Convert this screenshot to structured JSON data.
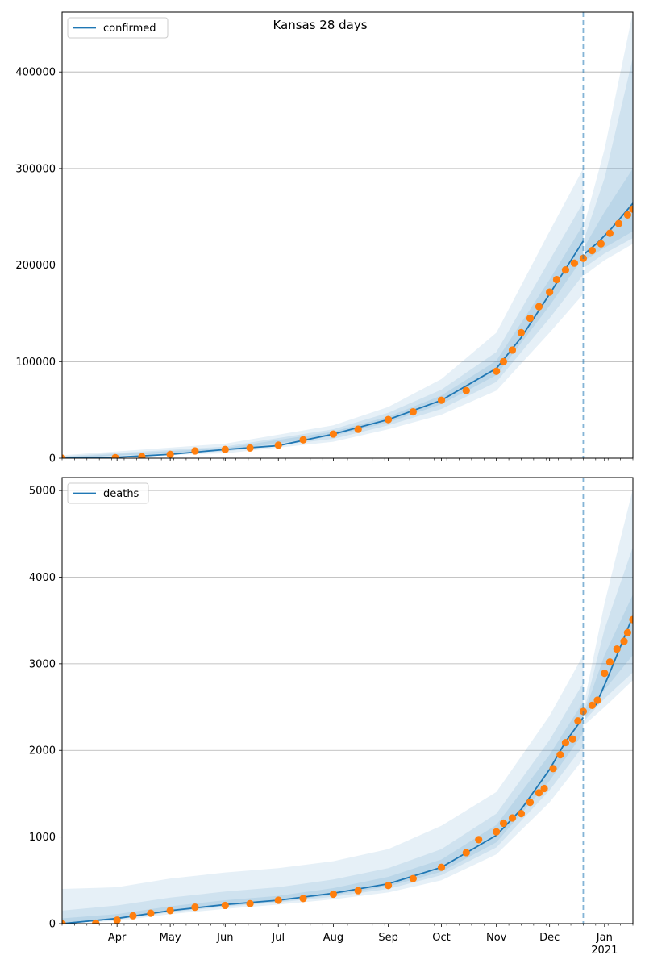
{
  "figure": {
    "title": "Kansas 28 days"
  },
  "colors": {
    "model_line": "#1f77b4",
    "band": "#1f77b4",
    "observed": "#ff7f0e",
    "forecast_line": "#1f77b4",
    "grid": "#b0b0b0",
    "axis": "#000000"
  },
  "chart_data": [
    {
      "type": "line",
      "name": "confirmed-panel",
      "x_axis": {
        "type": "date",
        "range": [
          "2020-03-01",
          "2021-01-17"
        ],
        "tick_labels": [
          {
            "date": "2020-04-01",
            "label": "Apr"
          },
          {
            "date": "2020-05-01",
            "label": "May"
          },
          {
            "date": "2020-06-01",
            "label": "Jun"
          },
          {
            "date": "2020-07-01",
            "label": "Jul"
          },
          {
            "date": "2020-08-01",
            "label": "Aug"
          },
          {
            "date": "2020-09-01",
            "label": "Sep"
          },
          {
            "date": "2020-10-01",
            "label": "Oct"
          },
          {
            "date": "2020-11-01",
            "label": "Nov"
          },
          {
            "date": "2020-12-01",
            "label": "Dec"
          },
          {
            "date": "2021-01-01",
            "label": "Jan"
          }
        ],
        "year_label": {
          "date": "2021-01-01",
          "label": "2021"
        },
        "show_tick_labels": false
      },
      "y_axis": {
        "range": [
          0,
          462000
        ],
        "ticks": [
          0,
          100000,
          200000,
          300000,
          400000
        ],
        "tick_labels": [
          "0",
          "100000",
          "200000",
          "300000",
          "400000"
        ]
      },
      "grid": "horizontal",
      "legend": {
        "position": "top-left",
        "entries": [
          "confirmed"
        ]
      },
      "forecast_start": "2020-12-20",
      "series": [
        {
          "name": "confirmed",
          "role": "model",
          "points": [
            [
              "2020-03-01",
              0
            ],
            [
              "2020-04-01",
              1000
            ],
            [
              "2020-05-01",
              4000
            ],
            [
              "2020-06-01",
              9000
            ],
            [
              "2020-07-01",
              13000
            ],
            [
              "2020-08-01",
              25000
            ],
            [
              "2020-09-01",
              40000
            ],
            [
              "2020-10-01",
              60000
            ],
            [
              "2020-11-01",
              93000
            ],
            [
              "2020-11-15",
              125000
            ],
            [
              "2020-12-01",
              170000
            ],
            [
              "2020-12-20",
              225000
            ],
            [
              "2020-12-21",
              212000
            ],
            [
              "2020-12-28",
              223000
            ],
            [
              "2021-01-05",
              238000
            ],
            [
              "2021-01-17",
              264000
            ]
          ]
        }
      ],
      "bands": [
        {
          "level": "outer",
          "points": [
            [
              "2020-03-01",
              0,
              3000
            ],
            [
              "2020-06-01",
              5000,
              15000
            ],
            [
              "2020-08-01",
              17000,
              34000
            ],
            [
              "2020-09-01",
              30000,
              53000
            ],
            [
              "2020-10-01",
              45000,
              82000
            ],
            [
              "2020-11-01",
              70000,
              130000
            ],
            [
              "2020-12-01",
              130000,
              235000
            ],
            [
              "2020-12-20",
              170000,
              300000
            ],
            [
              "2020-12-21",
              190000,
              245000
            ],
            [
              "2021-01-01",
              205000,
              320000
            ],
            [
              "2021-01-17",
              222000,
              462000
            ]
          ]
        },
        {
          "level": "middle",
          "points": [
            [
              "2020-03-01",
              0,
              2000
            ],
            [
              "2020-06-01",
              7000,
              12000
            ],
            [
              "2020-08-01",
              20000,
              30000
            ],
            [
              "2020-09-01",
              34000,
              47000
            ],
            [
              "2020-10-01",
              51000,
              71000
            ],
            [
              "2020-11-01",
              79000,
              110000
            ],
            [
              "2020-12-01",
              145000,
              205000
            ],
            [
              "2020-12-20",
              190000,
              265000
            ],
            [
              "2020-12-21",
              198000,
              230000
            ],
            [
              "2021-01-01",
              212000,
              290000
            ],
            [
              "2021-01-17",
              228000,
              415000
            ]
          ]
        },
        {
          "level": "inner",
          "points": [
            [
              "2020-03-01",
              0,
              1000
            ],
            [
              "2020-06-01",
              8000,
              10500
            ],
            [
              "2020-08-01",
              23000,
              27500
            ],
            [
              "2020-09-01",
              37000,
              43000
            ],
            [
              "2020-10-01",
              56000,
              65000
            ],
            [
              "2020-11-01",
              86000,
              101000
            ],
            [
              "2020-12-01",
              158000,
              185000
            ],
            [
              "2020-12-20",
              208000,
              242000
            ],
            [
              "2020-12-21",
              205000,
              220000
            ],
            [
              "2021-01-01",
              218000,
              255000
            ],
            [
              "2021-01-17",
              235000,
              300000
            ]
          ]
        }
      ],
      "observed": {
        "name": "observed confirmed",
        "points": [
          [
            "2020-03-01",
            0
          ],
          [
            "2020-03-31",
            500
          ],
          [
            "2020-04-15",
            1500
          ],
          [
            "2020-05-01",
            4000
          ],
          [
            "2020-05-15",
            7500
          ],
          [
            "2020-06-01",
            9000
          ],
          [
            "2020-06-15",
            10500
          ],
          [
            "2020-07-01",
            13500
          ],
          [
            "2020-07-15",
            19000
          ],
          [
            "2020-08-01",
            25000
          ],
          [
            "2020-08-15",
            30000
          ],
          [
            "2020-09-01",
            40000
          ],
          [
            "2020-09-15",
            48000
          ],
          [
            "2020-10-01",
            60000
          ],
          [
            "2020-10-15",
            70000
          ],
          [
            "2020-11-01",
            90000
          ],
          [
            "2020-11-05",
            100000
          ],
          [
            "2020-11-10",
            112000
          ],
          [
            "2020-11-15",
            130000
          ],
          [
            "2020-11-20",
            145000
          ],
          [
            "2020-11-25",
            157000
          ],
          [
            "2020-12-01",
            172000
          ],
          [
            "2020-12-05",
            185000
          ],
          [
            "2020-12-10",
            195000
          ],
          [
            "2020-12-15",
            202000
          ],
          [
            "2020-12-20",
            207000
          ],
          [
            "2020-12-25",
            215000
          ],
          [
            "2020-12-30",
            222000
          ],
          [
            "2021-01-04",
            233000
          ],
          [
            "2021-01-09",
            243000
          ],
          [
            "2021-01-14",
            252000
          ],
          [
            "2021-01-17",
            258000
          ]
        ]
      }
    },
    {
      "type": "line",
      "name": "deaths-panel",
      "x_axis": {
        "type": "date",
        "range": [
          "2020-03-01",
          "2021-01-17"
        ],
        "tick_labels": [
          {
            "date": "2020-04-01",
            "label": "Apr"
          },
          {
            "date": "2020-05-01",
            "label": "May"
          },
          {
            "date": "2020-06-01",
            "label": "Jun"
          },
          {
            "date": "2020-07-01",
            "label": "Jul"
          },
          {
            "date": "2020-08-01",
            "label": "Aug"
          },
          {
            "date": "2020-09-01",
            "label": "Sep"
          },
          {
            "date": "2020-10-01",
            "label": "Oct"
          },
          {
            "date": "2020-11-01",
            "label": "Nov"
          },
          {
            "date": "2020-12-01",
            "label": "Dec"
          },
          {
            "date": "2021-01-01",
            "label": "Jan"
          }
        ],
        "year_label": {
          "date": "2021-01-01",
          "label": "2021"
        },
        "show_tick_labels": true
      },
      "y_axis": {
        "range": [
          0,
          5150
        ],
        "ticks": [
          0,
          1000,
          2000,
          3000,
          4000,
          5000
        ],
        "tick_labels": [
          "0",
          "1000",
          "2000",
          "3000",
          "4000",
          "5000"
        ]
      },
      "grid": "horizontal",
      "legend": {
        "position": "top-left",
        "entries": [
          "deaths"
        ]
      },
      "forecast_start": "2020-12-20",
      "series": [
        {
          "name": "deaths",
          "role": "model",
          "points": [
            [
              "2020-03-01",
              0
            ],
            [
              "2020-04-01",
              60
            ],
            [
              "2020-05-01",
              150
            ],
            [
              "2020-06-01",
              220
            ],
            [
              "2020-07-01",
              270
            ],
            [
              "2020-08-01",
              350
            ],
            [
              "2020-09-01",
              460
            ],
            [
              "2020-10-01",
              650
            ],
            [
              "2020-11-01",
              1020
            ],
            [
              "2020-11-15",
              1320
            ],
            [
              "2020-12-01",
              1780
            ],
            [
              "2020-12-10",
              2100
            ],
            [
              "2020-12-20",
              2380
            ],
            [
              "2020-12-27",
              2520
            ],
            [
              "2021-01-03",
              2850
            ],
            [
              "2021-01-10",
              3200
            ],
            [
              "2021-01-17",
              3550
            ]
          ]
        }
      ],
      "bands": [
        {
          "level": "outer",
          "points": [
            [
              "2020-03-01",
              0,
              400
            ],
            [
              "2020-04-01",
              30,
              420
            ],
            [
              "2020-05-01",
              110,
              520
            ],
            [
              "2020-06-01",
              170,
              590
            ],
            [
              "2020-07-01",
              220,
              640
            ],
            [
              "2020-08-01",
              280,
              720
            ],
            [
              "2020-09-01",
              360,
              860
            ],
            [
              "2020-10-01",
              500,
              1130
            ],
            [
              "2020-11-01",
              800,
              1520
            ],
            [
              "2020-12-01",
              1400,
              2400
            ],
            [
              "2020-12-20",
              1900,
              3100
            ],
            [
              "2020-12-21",
              2300,
              2600
            ],
            [
              "2021-01-01",
              2500,
              3700
            ],
            [
              "2021-01-17",
              2810,
              5020
            ]
          ]
        },
        {
          "level": "middle",
          "points": [
            [
              "2020-03-01",
              0,
              150
            ],
            [
              "2020-04-01",
              45,
              210
            ],
            [
              "2020-05-01",
              130,
              300
            ],
            [
              "2020-06-01",
              195,
              370
            ],
            [
              "2020-07-01",
              245,
              420
            ],
            [
              "2020-08-01",
              310,
              510
            ],
            [
              "2020-09-01",
              400,
              640
            ],
            [
              "2020-10-01",
              560,
              860
            ],
            [
              "2020-11-01",
              880,
              1270
            ],
            [
              "2020-12-01",
              1540,
              2120
            ],
            [
              "2020-12-20",
              2050,
              2780
            ],
            [
              "2020-12-21",
              2350,
              2500
            ],
            [
              "2021-01-01",
              2600,
              3400
            ],
            [
              "2021-01-17",
              2900,
              4350
            ]
          ]
        },
        {
          "level": "inner",
          "points": [
            [
              "2020-03-01",
              0,
              60
            ],
            [
              "2020-04-01",
              50,
              110
            ],
            [
              "2020-05-01",
              140,
              200
            ],
            [
              "2020-06-01",
              205,
              270
            ],
            [
              "2020-07-01",
              255,
              320
            ],
            [
              "2020-08-01",
              330,
              410
            ],
            [
              "2020-09-01",
              430,
              540
            ],
            [
              "2020-10-01",
              600,
              740
            ],
            [
              "2020-11-01",
              940,
              1140
            ],
            [
              "2020-12-01",
              1650,
              1950
            ],
            [
              "2020-12-20",
              2200,
              2560
            ],
            [
              "2020-12-21",
              2380,
              2460
            ],
            [
              "2021-01-01",
              2700,
              3100
            ],
            [
              "2021-01-17",
              3100,
              3800
            ]
          ]
        }
      ],
      "observed": {
        "name": "observed deaths",
        "points": [
          [
            "2020-03-01",
            0
          ],
          [
            "2020-03-20",
            5
          ],
          [
            "2020-04-01",
            40
          ],
          [
            "2020-04-10",
            90
          ],
          [
            "2020-04-20",
            120
          ],
          [
            "2020-05-01",
            150
          ],
          [
            "2020-05-15",
            190
          ],
          [
            "2020-06-01",
            210
          ],
          [
            "2020-06-15",
            230
          ],
          [
            "2020-07-01",
            270
          ],
          [
            "2020-07-15",
            290
          ],
          [
            "2020-08-01",
            340
          ],
          [
            "2020-08-15",
            380
          ],
          [
            "2020-09-01",
            440
          ],
          [
            "2020-09-15",
            520
          ],
          [
            "2020-10-01",
            650
          ],
          [
            "2020-10-15",
            820
          ],
          [
            "2020-10-22",
            970
          ],
          [
            "2020-11-01",
            1060
          ],
          [
            "2020-11-05",
            1160
          ],
          [
            "2020-11-10",
            1220
          ],
          [
            "2020-11-15",
            1270
          ],
          [
            "2020-11-20",
            1400
          ],
          [
            "2020-11-25",
            1510
          ],
          [
            "2020-11-28",
            1560
          ],
          [
            "2020-12-03",
            1790
          ],
          [
            "2020-12-07",
            1950
          ],
          [
            "2020-12-10",
            2090
          ],
          [
            "2020-12-14",
            2130
          ],
          [
            "2020-12-17",
            2340
          ],
          [
            "2020-12-20",
            2450
          ],
          [
            "2020-12-25",
            2520
          ],
          [
            "2020-12-28",
            2580
          ],
          [
            "2021-01-01",
            2890
          ],
          [
            "2021-01-04",
            3020
          ],
          [
            "2021-01-08",
            3170
          ],
          [
            "2021-01-12",
            3260
          ],
          [
            "2021-01-14",
            3360
          ],
          [
            "2021-01-17",
            3510
          ]
        ]
      }
    }
  ]
}
